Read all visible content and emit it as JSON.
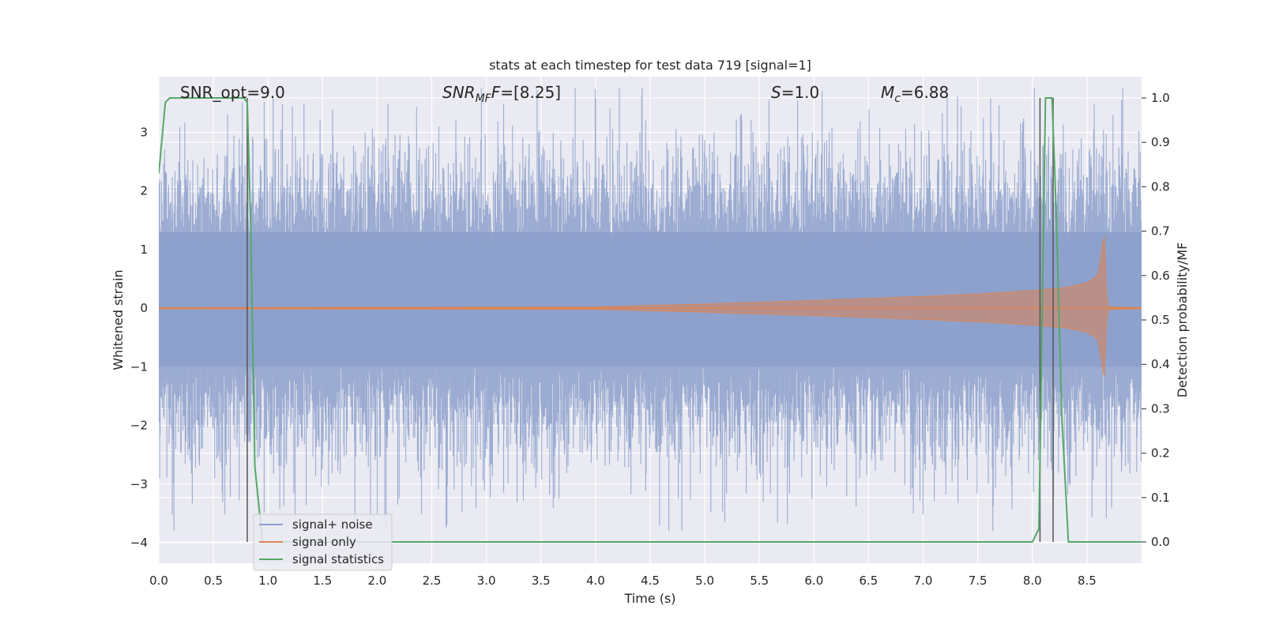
{
  "chart_data": {
    "type": "line",
    "title": "stats at each timestep for test data 719 [signal=1]",
    "xlabel": "Time (s)",
    "ylabel": "Whitened strain",
    "y2label": "Detection probability/MF",
    "xlim": [
      0.0,
      9.0
    ],
    "ylim": [
      -4.35,
      3.95
    ],
    "y2lim": [
      -0.048,
      1.048
    ],
    "xticks": [
      "0.0",
      "0.5",
      "1.0",
      "1.5",
      "2.0",
      "2.5",
      "3.0",
      "3.5",
      "4.0",
      "4.5",
      "5.0",
      "5.5",
      "6.0",
      "6.5",
      "7.0",
      "7.5",
      "8.0",
      "8.5"
    ],
    "xtick_values": [
      0.0,
      0.5,
      1.0,
      1.5,
      2.0,
      2.5,
      3.0,
      3.5,
      4.0,
      4.5,
      5.0,
      5.5,
      6.0,
      6.5,
      7.0,
      7.5,
      8.0,
      8.5
    ],
    "yticks": [
      "−4",
      "−3",
      "−2",
      "−1",
      "0",
      "1",
      "2",
      "3"
    ],
    "ytick_values": [
      -4,
      -3,
      -2,
      -1,
      0,
      1,
      2,
      3
    ],
    "y2ticks": [
      "0.0",
      "0.1",
      "0.2",
      "0.3",
      "0.4",
      "0.5",
      "0.6",
      "0.7",
      "0.8",
      "0.9",
      "1.0"
    ],
    "y2tick_values": [
      0.0,
      0.1,
      0.2,
      0.3,
      0.4,
      0.5,
      0.6,
      0.7,
      0.8,
      0.9,
      1.0
    ],
    "grid": true,
    "legend": {
      "placement": "lower-left",
      "entries": [
        {
          "name": "signal+ noise",
          "color": "#8da0cb"
        },
        {
          "name": "signal only",
          "color": "#dd8452"
        },
        {
          "name": "signal statistics",
          "color": "#55a868"
        }
      ]
    },
    "annotations": {
      "snr_opt": "SNR_opt=9.0",
      "snr_mf_main": "SNR",
      "snr_mf_sub": "MF",
      "snr_mf_value": "=[8.25]",
      "s_main": "S",
      "s_value": "=1.0",
      "mc_main": "M",
      "mc_sub": "c",
      "mc_value": "=6.88"
    },
    "vertical_lines_x": [
      0.81,
      8.07,
      8.19
    ],
    "colors": {
      "noise": "#8da0cb",
      "signal": "#dd8452",
      "stats": "#55a868",
      "vline": "#555555",
      "background": "#eaeaf2"
    },
    "series": [
      {
        "name": "signal statistics",
        "axis": "right",
        "x": [
          0.0,
          0.06,
          0.1,
          0.2,
          0.5,
          0.78,
          0.81,
          0.84,
          0.88,
          0.95,
          1.0,
          3.5,
          6.5,
          8.0,
          8.06,
          8.12,
          8.18,
          8.22,
          8.27,
          8.33,
          8.5,
          9.0
        ],
        "y": [
          0.83,
          0.99,
          1.0,
          1.0,
          1.0,
          1.0,
          0.99,
          0.73,
          0.17,
          0.0,
          0.0,
          0.0,
          0.0,
          0.0,
          0.03,
          1.0,
          1.0,
          0.73,
          0.28,
          0.0,
          0.0,
          0.0
        ]
      },
      {
        "name": "signal only",
        "axis": "left",
        "envelope_x": [
          0.0,
          4.0,
          5.0,
          6.0,
          7.0,
          7.5,
          8.0,
          8.3,
          8.5,
          8.6,
          8.66,
          8.68,
          8.7,
          9.0
        ],
        "envelope_y": [
          0.01,
          0.02,
          0.07,
          0.13,
          0.2,
          0.24,
          0.3,
          0.35,
          0.43,
          0.55,
          1.25,
          0.05,
          0.02,
          0.01
        ]
      },
      {
        "name": "signal+ noise",
        "axis": "left",
        "band": [
          -1.0,
          1.3
        ],
        "peak_range": [
          -3.8,
          3.75
        ]
      }
    ]
  }
}
